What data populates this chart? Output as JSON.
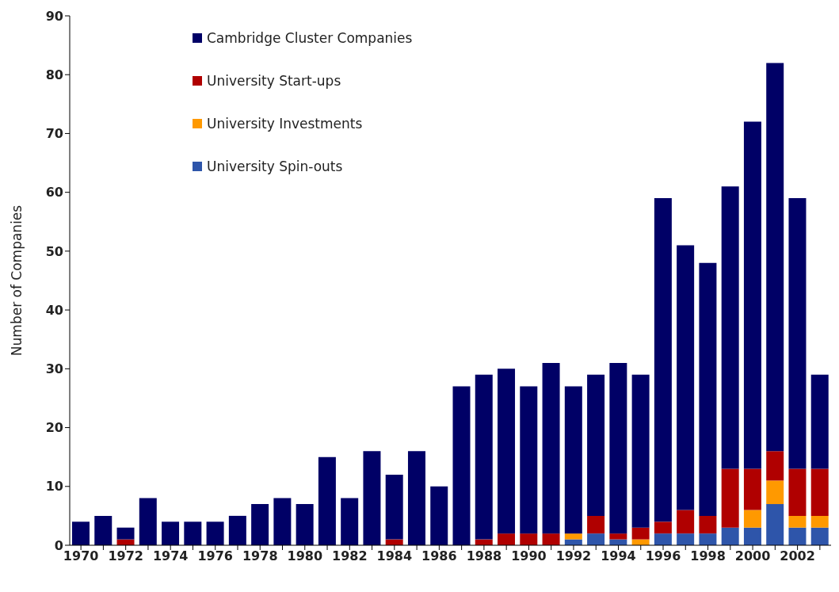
{
  "chart_data": {
    "type": "bar",
    "stacked": true,
    "ylabel": "Number of Companies",
    "categories": [
      "1970",
      null,
      "1972",
      null,
      "1974",
      null,
      "1976",
      null,
      "1978",
      null,
      "1980",
      null,
      "1982",
      null,
      "1984",
      null,
      "1986",
      null,
      "1988",
      null,
      "1990",
      null,
      "1992",
      null,
      "1994",
      null,
      "1996",
      null,
      "1998",
      null,
      "2000",
      null,
      "2002",
      null
    ],
    "series": [
      {
        "name": "University Spin-outs",
        "color": "#2e55aa",
        "values": [
          0,
          0,
          0,
          0,
          0,
          0,
          0,
          0,
          0,
          0,
          0,
          0,
          0,
          0,
          0,
          0,
          0,
          0,
          0,
          0,
          0,
          0,
          1,
          2,
          1,
          0,
          2,
          2,
          2,
          3,
          3,
          7,
          3,
          3
        ]
      },
      {
        "name": "University Investments",
        "color": "#ff9900",
        "values": [
          0,
          0,
          0,
          0,
          0,
          0,
          0,
          0,
          0,
          0,
          0,
          0,
          0,
          0,
          0,
          0,
          0,
          0,
          0,
          0,
          0,
          0,
          1,
          0,
          0,
          1,
          0,
          0,
          0,
          0,
          3,
          4,
          2,
          2
        ]
      },
      {
        "name": "University Start-ups",
        "color": "#b00000",
        "values": [
          0,
          0,
          1,
          0,
          0,
          0,
          0,
          0,
          0,
          0,
          0,
          0,
          0,
          0,
          1,
          0,
          0,
          0,
          1,
          2,
          2,
          2,
          0,
          3,
          1,
          2,
          2,
          4,
          3,
          10,
          7,
          5,
          8,
          8
        ]
      },
      {
        "name": "Cambridge Cluster Companies",
        "color": "#000066",
        "values": [
          4,
          5,
          2,
          8,
          4,
          4,
          4,
          5,
          7,
          8,
          7,
          15,
          8,
          16,
          11,
          16,
          10,
          27,
          28,
          28,
          25,
          29,
          25,
          24,
          29,
          26,
          55,
          45,
          43,
          48,
          59,
          66,
          46,
          16
        ]
      }
    ],
    "ylim": [
      0,
      90
    ],
    "yticks": [
      0,
      10,
      20,
      30,
      40,
      50,
      60,
      70,
      80,
      90
    ],
    "grid": false,
    "legend": "top left"
  }
}
